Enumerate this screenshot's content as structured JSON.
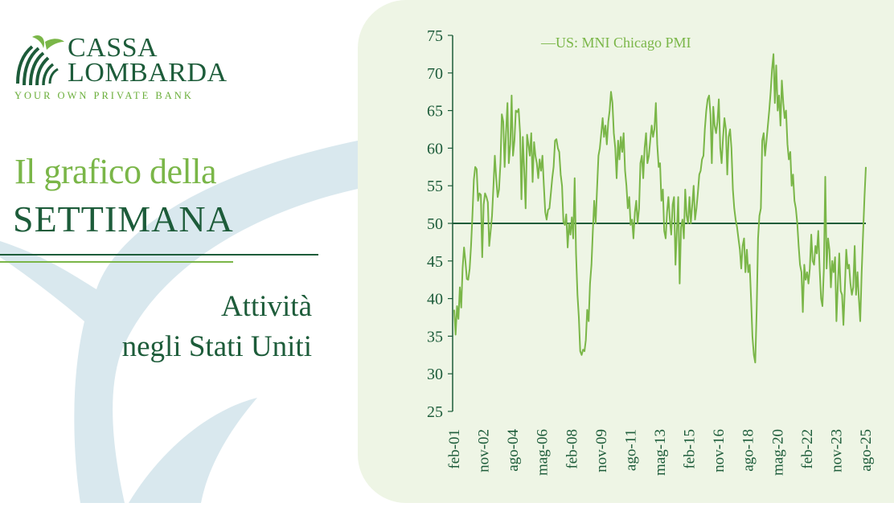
{
  "brand": {
    "line1": "CASSA",
    "line2": "LOMBARDA",
    "tagline": "YOUR OWN PRIVATE BANK"
  },
  "heading": {
    "line1": "Il grafico della",
    "line2": "SETTIMANA",
    "subtitle_line1": "Attività",
    "subtitle_line2": "negli Stati Uniti"
  },
  "colors": {
    "dark_green": "#1d5c3a",
    "light_green": "#7ab648",
    "panel_bg": "#eef5e5",
    "swoosh": "#d9e8ee"
  },
  "chart_data": {
    "type": "line",
    "legend": "—US: MNI Chicago PMI",
    "legend_position": "top-left",
    "ylim": [
      25,
      75
    ],
    "yticks": [
      25,
      30,
      35,
      40,
      45,
      50,
      55,
      60,
      65,
      70,
      75
    ],
    "xtick_labels": [
      "feb-01",
      "nov-02",
      "ago-04",
      "mag-06",
      "feb-08",
      "nov-09",
      "ago-11",
      "mag-13",
      "feb-15",
      "nov-16",
      "ago-18",
      "mag-20",
      "feb-22",
      "nov-23",
      "ago-25"
    ],
    "reference_line": 50,
    "x_start": "2001-02",
    "series": [
      {
        "name": "US: MNI Chicago PMI",
        "values": [
          38.5,
          35.2,
          39.0,
          37.3,
          41.5,
          38.8,
          44.0,
          46.8,
          45.0,
          42.6,
          42.5,
          44.0,
          47.0,
          51.0,
          55.8,
          57.5,
          57.2,
          53.0,
          54.0,
          53.8,
          45.5,
          52.5,
          54.0,
          53.5,
          52.8,
          47.0,
          49.0,
          51.0,
          55.0,
          59.0,
          56.0,
          53.5,
          54.5,
          58.0,
          64.5,
          63.5,
          57.5,
          62.0,
          66.0,
          58.0,
          60.5,
          67.0,
          59.0,
          61.0,
          65.0,
          64.8,
          65.2,
          62.0,
          53.2,
          61.5,
          57.0,
          52.0,
          61.8,
          60.5,
          59.0,
          62.0,
          55.5,
          60.8,
          59.0,
          58.0,
          56.0,
          58.5,
          57.0,
          59.0,
          55.0,
          51.5,
          50.5,
          51.8,
          52.0,
          54.0,
          56.0,
          57.5,
          61.0,
          61.2,
          60.0,
          59.5,
          56.5,
          55.0,
          50.2,
          49.8,
          51.2,
          46.8,
          50.0,
          48.5,
          50.8,
          48.0,
          56.0,
          46.0,
          40.5,
          37.5,
          33.0,
          32.5,
          33.2,
          33.0,
          34.5,
          38.5,
          37.0,
          42.0,
          44.5,
          49.0,
          53.0,
          50.0,
          54.5,
          59.0,
          60.0,
          62.0,
          64.0,
          61.5,
          63.0,
          60.5,
          63.5,
          65.0,
          67.5,
          66.0,
          62.0,
          60.0,
          56.0,
          61.0,
          58.5,
          61.5,
          59.5,
          62.0,
          57.0,
          55.0,
          52.0,
          53.5,
          49.8,
          50.5,
          48.0,
          51.5,
          53.0,
          50.0,
          52.0,
          58.0,
          59.0,
          56.0,
          60.0,
          62.0,
          58.0,
          59.0,
          61.0,
          63.0,
          61.5,
          62.5,
          66.0,
          60.5,
          57.5,
          58.0,
          53.0,
          54.5,
          49.0,
          48.0,
          51.5,
          53.5,
          50.5,
          48.5,
          52.5,
          53.5,
          44.5,
          49.0,
          53.5,
          42.0,
          49.5,
          50.5,
          48.0,
          54.5,
          51.0,
          50.0,
          53.5,
          50.0,
          52.5,
          55.0,
          50.5,
          52.0,
          54.0,
          56.5,
          57.0,
          58.5,
          59.0,
          62.5,
          65.0,
          66.5,
          67.0,
          64.5,
          58.0,
          65.5,
          63.0,
          62.0,
          63.5,
          66.5,
          60.0,
          58.0,
          61.5,
          64.0,
          62.5,
          56.5,
          61.5,
          62.5,
          60.0,
          54.5,
          52.0,
          50.5,
          49.5,
          48.0,
          46.5,
          44.0,
          47.0,
          48.0,
          43.5,
          46.5,
          43.5,
          44.5,
          40.0,
          35.0,
          32.5,
          31.5,
          38.5,
          48.0,
          51.0,
          52.0,
          61.0,
          62.0,
          59.0,
          61.0,
          63.0,
          65.0,
          67.5,
          70.5,
          72.5,
          66.0,
          71.0,
          65.0,
          67.0,
          63.0,
          69.0,
          66.0,
          64.0,
          65.0,
          60.5,
          58.5,
          59.5,
          55.0,
          56.5,
          53.0,
          52.0,
          50.0,
          47.0,
          44.5,
          43.5,
          38.2,
          44.5,
          42.5,
          43.5,
          42.0,
          44.0,
          48.5,
          45.0,
          44.5,
          47.0,
          46.0,
          49.0,
          44.0,
          40.0,
          39.0,
          44.0,
          56.2,
          44.0,
          48.0,
          46.5,
          41.5,
          45.0,
          43.5,
          45.5,
          37.0,
          42.0,
          46.0,
          41.0,
          40.5,
          36.5,
          41.5,
          46.5,
          44.0,
          44.5,
          42.0,
          40.5,
          41.5,
          47.0,
          40.5,
          43.5,
          40.0,
          37.0,
          43.5,
          48.5,
          53.5,
          57.5
        ]
      }
    ]
  }
}
